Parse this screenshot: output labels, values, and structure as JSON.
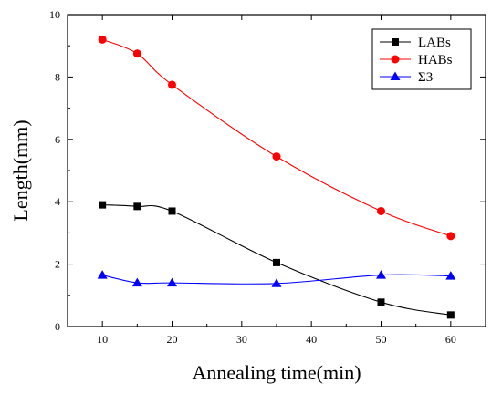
{
  "chart_data": {
    "type": "line",
    "xlabel": "Annealing time(min)",
    "ylabel": "Length(mm)",
    "xlim": [
      5,
      65
    ],
    "ylim": [
      0,
      10
    ],
    "xticks": [
      10,
      20,
      30,
      40,
      50,
      60
    ],
    "yticks": [
      0,
      2,
      4,
      6,
      8,
      10
    ],
    "grid": false,
    "legend_position": "top-right",
    "x": [
      10,
      15,
      20,
      35,
      50,
      60
    ],
    "series": [
      {
        "name": "LABs",
        "color": "#000000",
        "marker": "square",
        "values": [
          3.9,
          3.85,
          3.7,
          2.05,
          0.78,
          0.37
        ]
      },
      {
        "name": "HABs",
        "color": "#ff0000",
        "marker": "circle",
        "values": [
          9.2,
          8.75,
          7.75,
          5.45,
          3.7,
          2.9
        ]
      },
      {
        "name": "Σ3",
        "color": "#0000ff",
        "marker": "triangle",
        "values": [
          1.65,
          1.4,
          1.4,
          1.38,
          1.65,
          1.62
        ]
      }
    ]
  }
}
